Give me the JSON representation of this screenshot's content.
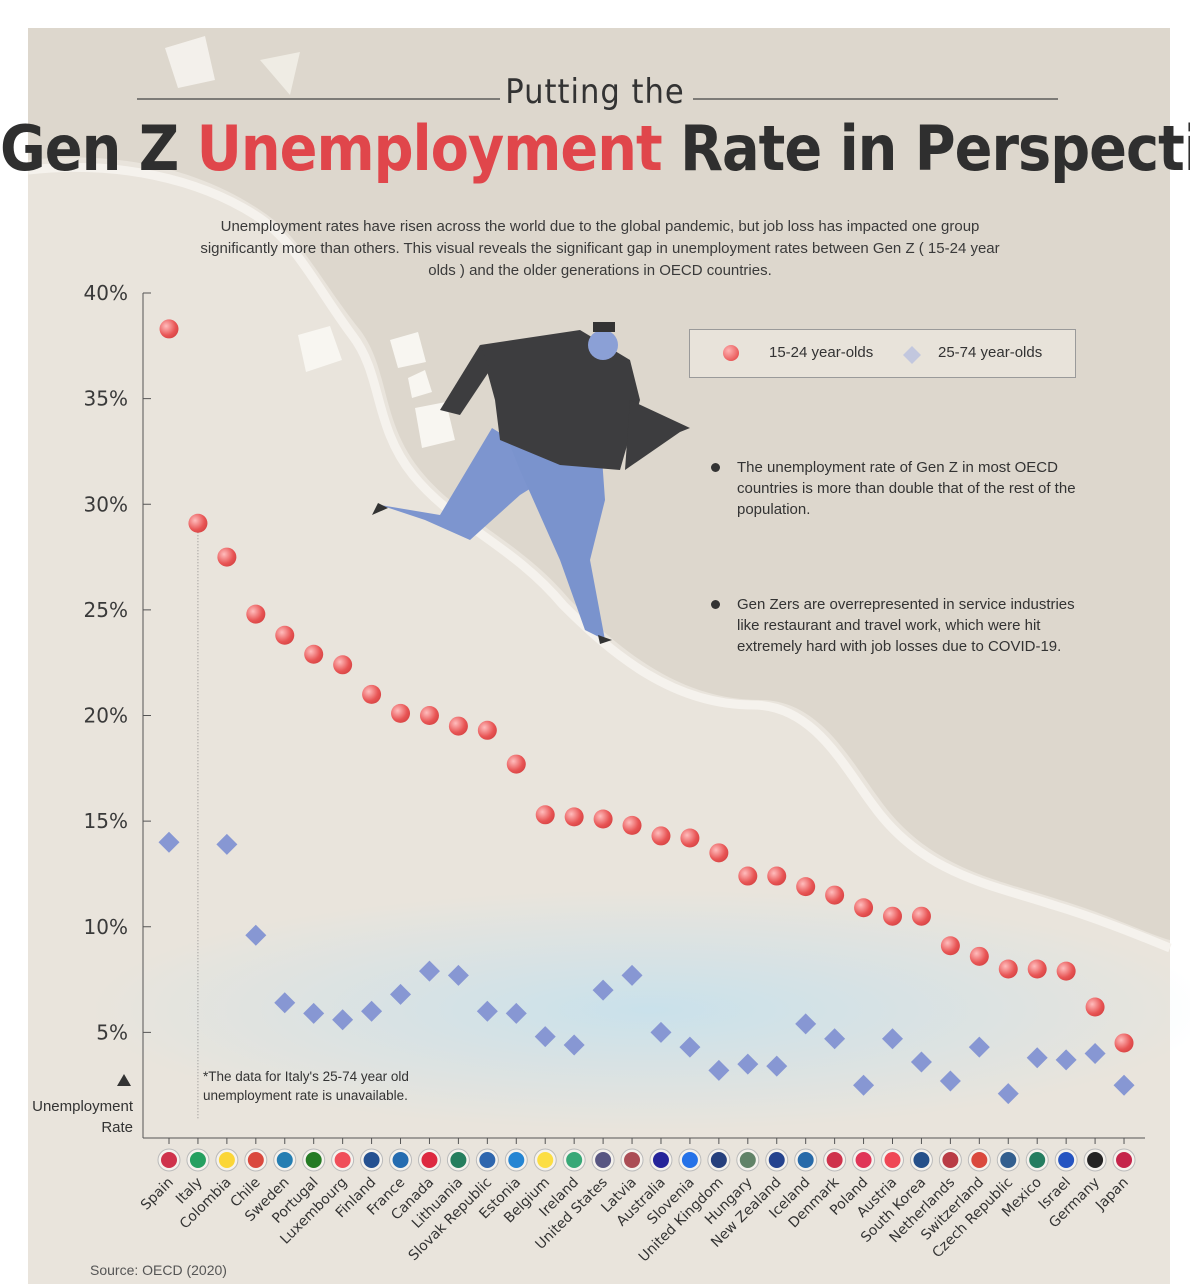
{
  "header": {
    "pretitle": "Putting the",
    "title_pre": "Gen Z",
    "title_highlight": "Unemployment",
    "title_post": "Rate in Perspective",
    "subtitle": "Unemployment rates have risen across the world due to the global pandemic, but job loss has impacted one group significantly more than others. This visual reveals the significant gap in unemployment rates between Gen Z ( 15-24 year olds ) and the older generations in OECD countries."
  },
  "legend": {
    "genz": "15-24 year-olds",
    "older": "25-74 year-olds"
  },
  "notes": [
    "The unemployment rate of Gen Z in most OECD countries is more than double that of the rest of the population.",
    "Gen Zers are overrepresented in service industries like restaurant and travel work, which were hit extremely hard with job losses due to COVID-19."
  ],
  "footnote": "*The data for Italy's 25-74 year old unemployment rate is unavailable.",
  "axis_label": "Unemployment Rate",
  "source": "Source: OECD (2020)",
  "colors": {
    "genz": "#e85a5a",
    "older": "#8596d2",
    "accent": "#e0464b"
  },
  "chart_data": {
    "type": "dumbbell",
    "ylim": [
      0,
      40
    ],
    "yticks": [
      5,
      10,
      15,
      20,
      25,
      30,
      35,
      40
    ],
    "ytick_labels": [
      "5%",
      "10%",
      "15%",
      "20%",
      "25%",
      "30%",
      "35%",
      "40%"
    ],
    "categories": [
      "Spain",
      "Italy",
      "Colombia",
      "Chile",
      "Sweden",
      "Portugal",
      "Luxembourg",
      "Finland",
      "France",
      "Canada",
      "Lithuania",
      "Slovak Republic",
      "Estonia",
      "Belgium",
      "Ireland",
      "United States",
      "Latvia",
      "Australia",
      "Slovenia",
      "United Kingdom",
      "Hungary",
      "New Zealand",
      "Iceland",
      "Denmark",
      "Poland",
      "Austria",
      "South Korea",
      "Netherlands",
      "Switzerland",
      "Czech Republic",
      "Mexico",
      "Israel",
      "Germany",
      "Japan"
    ],
    "series": [
      {
        "name": "15-24 year-olds",
        "values": [
          38.3,
          29.1,
          27.5,
          24.8,
          23.8,
          22.9,
          22.4,
          21.0,
          20.1,
          20.0,
          19.5,
          19.3,
          17.7,
          15.3,
          15.2,
          15.1,
          14.8,
          14.3,
          14.2,
          13.5,
          12.4,
          12.4,
          11.9,
          11.5,
          10.9,
          10.5,
          10.5,
          9.1,
          8.6,
          8.0,
          8.0,
          7.9,
          6.2,
          4.5
        ]
      },
      {
        "name": "25-74 year-olds",
        "values": [
          14.0,
          null,
          13.9,
          9.6,
          6.4,
          5.9,
          5.6,
          6.0,
          6.8,
          7.9,
          7.7,
          6.0,
          5.9,
          4.8,
          4.4,
          7.0,
          7.7,
          5.0,
          4.3,
          3.2,
          3.5,
          3.4,
          5.4,
          4.7,
          2.5,
          4.7,
          3.6,
          2.7,
          4.3,
          2.1,
          3.8,
          3.7,
          4.0,
          2.5
        ]
      }
    ]
  }
}
